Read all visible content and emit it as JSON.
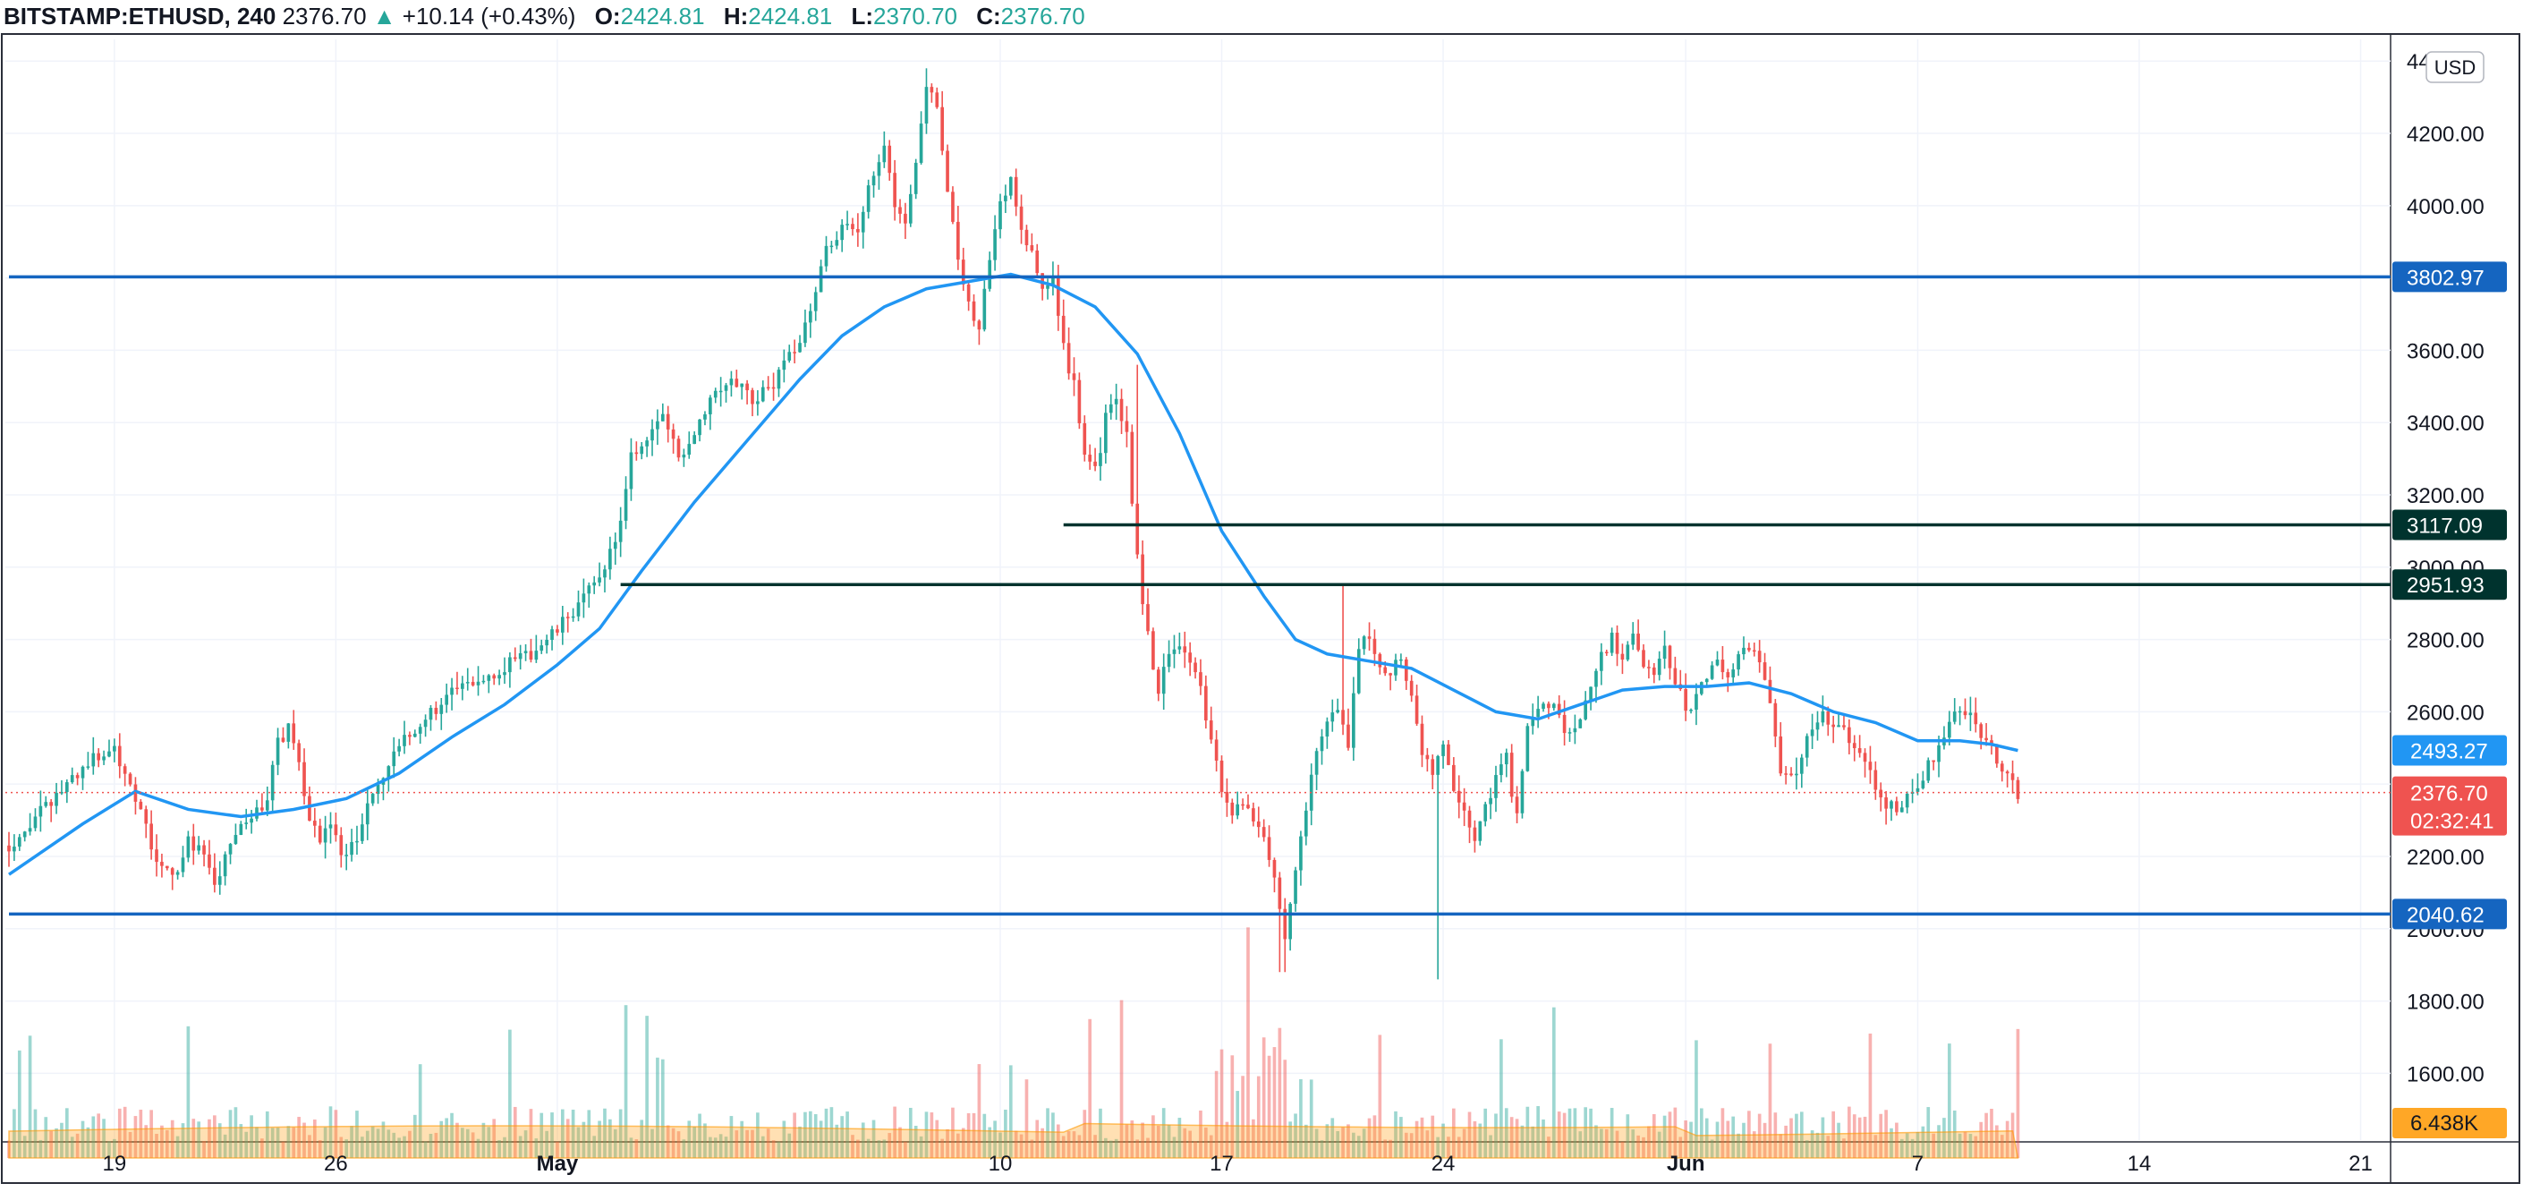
{
  "header": {
    "symbol": "BITSTAMP:ETHUSD, 240",
    "last": "2376.70",
    "arrow": "▲",
    "change": "+10.14 (+0.43%)",
    "open_label": "O:",
    "open": "2424.81",
    "high_label": "H:",
    "high": "2424.81",
    "low_label": "L:",
    "low": "2370.70",
    "close_label": "C:",
    "close": "2376.70"
  },
  "currency_badge": "USD",
  "colors": {
    "up": "#26a69a",
    "down": "#ef5350",
    "ma": "#2196f3",
    "hline_blue": "#1565c0",
    "hline_dark": "#00332e",
    "price_label": "#ef5350",
    "ma_label": "#2196f3",
    "volume_label": "#ffa726"
  },
  "chart_data": {
    "type": "candlestick",
    "timeframe": "240",
    "y_axis": {
      "ylim": [
        1440,
        4460
      ],
      "ticks": [
        "1600.00",
        "1800.00",
        "2000.00",
        "2200.00",
        "2400.00",
        "2600.00",
        "2800.00",
        "3000.00",
        "3200.00",
        "3400.00",
        "3600.00",
        "3800.00",
        "4000.00",
        "4200.00",
        "4400.00"
      ]
    },
    "x_axis": {
      "ticks": [
        {
          "label": "19",
          "bold": false,
          "index": 20
        },
        {
          "label": "26",
          "bold": false,
          "index": 62
        },
        {
          "label": "May",
          "bold": true,
          "index": 104
        },
        {
          "label": "10",
          "bold": false,
          "index": 188
        },
        {
          "label": "17",
          "bold": false,
          "index": 230
        },
        {
          "label": "24",
          "bold": false,
          "index": 272
        },
        {
          "label": "Jun",
          "bold": true,
          "index": 318
        },
        {
          "label": "7",
          "bold": false,
          "index": 362
        },
        {
          "label": "14",
          "bold": false,
          "index": 404
        },
        {
          "label": "21",
          "bold": false,
          "index": 446
        }
      ],
      "total_bars": 452
    },
    "anchors": [
      [
        0,
        2230
      ],
      [
        4,
        2290
      ],
      [
        8,
        2350
      ],
      [
        12,
        2420
      ],
      [
        16,
        2470
      ],
      [
        20,
        2500
      ],
      [
        24,
        2370
      ],
      [
        28,
        2180
      ],
      [
        31,
        2140
      ],
      [
        34,
        2240
      ],
      [
        36,
        2230
      ],
      [
        39,
        2120
      ],
      [
        43,
        2260
      ],
      [
        46,
        2310
      ],
      [
        49,
        2360
      ],
      [
        51,
        2510
      ],
      [
        53,
        2560
      ],
      [
        55,
        2470
      ],
      [
        57,
        2300
      ],
      [
        59,
        2250
      ],
      [
        61,
        2290
      ],
      [
        63,
        2210
      ],
      [
        66,
        2240
      ],
      [
        68,
        2340
      ],
      [
        71,
        2420
      ],
      [
        74,
        2500
      ],
      [
        77,
        2550
      ],
      [
        80,
        2600
      ],
      [
        84,
        2650
      ],
      [
        88,
        2680
      ],
      [
        93,
        2720
      ],
      [
        98,
        2750
      ],
      [
        103,
        2810
      ],
      [
        107,
        2880
      ],
      [
        111,
        2950
      ],
      [
        114,
        3040
      ],
      [
        116,
        3120
      ],
      [
        118,
        3300
      ],
      [
        121,
        3360
      ],
      [
        124,
        3420
      ],
      [
        127,
        3300
      ],
      [
        130,
        3380
      ],
      [
        133,
        3470
      ],
      [
        137,
        3530
      ],
      [
        141,
        3460
      ],
      [
        145,
        3510
      ],
      [
        149,
        3600
      ],
      [
        152,
        3720
      ],
      [
        155,
        3880
      ],
      [
        158,
        3940
      ],
      [
        161,
        3920
      ],
      [
        164,
        4100
      ],
      [
        166,
        4180
      ],
      [
        168,
        4000
      ],
      [
        170,
        3960
      ],
      [
        172,
        4130
      ],
      [
        174,
        4330
      ],
      [
        176,
        4290
      ],
      [
        178,
        4040
      ],
      [
        180,
        3840
      ],
      [
        182,
        3740
      ],
      [
        184,
        3660
      ],
      [
        186,
        3860
      ],
      [
        188,
        4000
      ],
      [
        190,
        4080
      ],
      [
        192,
        3940
      ],
      [
        194,
        3860
      ],
      [
        196,
        3770
      ],
      [
        198,
        3790
      ],
      [
        200,
        3610
      ],
      [
        202,
        3500
      ],
      [
        204,
        3320
      ],
      [
        206,
        3260
      ],
      [
        208,
        3410
      ],
      [
        210,
        3470
      ],
      [
        212,
        3360
      ],
      [
        214,
        3020
      ],
      [
        216,
        2810
      ],
      [
        218,
        2660
      ],
      [
        220,
        2760
      ],
      [
        222,
        2800
      ],
      [
        224,
        2730
      ],
      [
        226,
        2660
      ],
      [
        228,
        2520
      ],
      [
        230,
        2370
      ],
      [
        232,
        2300
      ],
      [
        234,
        2360
      ],
      [
        236,
        2300
      ],
      [
        238,
        2250
      ],
      [
        240,
        2150
      ],
      [
        242,
        1990
      ],
      [
        244,
        2170
      ],
      [
        246,
        2320
      ],
      [
        248,
        2500
      ],
      [
        250,
        2560
      ],
      [
        252,
        2620
      ],
      [
        254,
        2510
      ],
      [
        256,
        2760
      ],
      [
        258,
        2820
      ],
      [
        260,
        2730
      ],
      [
        262,
        2720
      ],
      [
        264,
        2750
      ],
      [
        266,
        2650
      ],
      [
        268,
        2470
      ],
      [
        270,
        2440
      ],
      [
        272,
        2500
      ],
      [
        274,
        2380
      ],
      [
        276,
        2310
      ],
      [
        278,
        2250
      ],
      [
        280,
        2340
      ],
      [
        282,
        2420
      ],
      [
        284,
        2470
      ],
      [
        286,
        2300
      ],
      [
        288,
        2560
      ],
      [
        290,
        2620
      ],
      [
        292,
        2630
      ],
      [
        294,
        2580
      ],
      [
        296,
        2540
      ],
      [
        298,
        2580
      ],
      [
        300,
        2680
      ],
      [
        302,
        2750
      ],
      [
        304,
        2800
      ],
      [
        306,
        2740
      ],
      [
        308,
        2820
      ],
      [
        310,
        2720
      ],
      [
        312,
        2690
      ],
      [
        314,
        2780
      ],
      [
        316,
        2680
      ],
      [
        318,
        2610
      ],
      [
        320,
        2640
      ],
      [
        322,
        2690
      ],
      [
        324,
        2740
      ],
      [
        326,
        2700
      ],
      [
        328,
        2760
      ],
      [
        330,
        2790
      ],
      [
        332,
        2740
      ],
      [
        334,
        2620
      ],
      [
        336,
        2420
      ],
      [
        338,
        2410
      ],
      [
        340,
        2480
      ],
      [
        342,
        2560
      ],
      [
        344,
        2600
      ],
      [
        346,
        2560
      ],
      [
        348,
        2540
      ],
      [
        350,
        2500
      ],
      [
        352,
        2450
      ],
      [
        354,
        2390
      ],
      [
        356,
        2350
      ],
      [
        358,
        2320
      ],
      [
        360,
        2360
      ],
      [
        362,
        2380
      ],
      [
        364,
        2450
      ],
      [
        366,
        2510
      ],
      [
        368,
        2580
      ],
      [
        370,
        2620
      ],
      [
        372,
        2580
      ],
      [
        374,
        2540
      ],
      [
        376,
        2510
      ],
      [
        378,
        2440
      ],
      [
        380,
        2410
      ],
      [
        381,
        2377
      ]
    ],
    "moving_average": {
      "label": "2493.27",
      "points": [
        [
          0,
          2150
        ],
        [
          14,
          2290
        ],
        [
          24,
          2380
        ],
        [
          34,
          2330
        ],
        [
          44,
          2310
        ],
        [
          54,
          2330
        ],
        [
          64,
          2360
        ],
        [
          74,
          2430
        ],
        [
          84,
          2530
        ],
        [
          94,
          2620
        ],
        [
          104,
          2730
        ],
        [
          112,
          2830
        ],
        [
          120,
          2990
        ],
        [
          130,
          3180
        ],
        [
          140,
          3350
        ],
        [
          150,
          3520
        ],
        [
          158,
          3640
        ],
        [
          166,
          3720
        ],
        [
          174,
          3770
        ],
        [
          182,
          3790
        ],
        [
          190,
          3810
        ],
        [
          198,
          3780
        ],
        [
          206,
          3720
        ],
        [
          214,
          3590
        ],
        [
          222,
          3370
        ],
        [
          230,
          3100
        ],
        [
          238,
          2920
        ],
        [
          244,
          2800
        ],
        [
          250,
          2760
        ],
        [
          258,
          2740
        ],
        [
          266,
          2720
        ],
        [
          274,
          2660
        ],
        [
          282,
          2600
        ],
        [
          290,
          2580
        ],
        [
          298,
          2620
        ],
        [
          306,
          2660
        ],
        [
          314,
          2670
        ],
        [
          322,
          2670
        ],
        [
          330,
          2680
        ],
        [
          338,
          2650
        ],
        [
          346,
          2600
        ],
        [
          354,
          2570
        ],
        [
          362,
          2520
        ],
        [
          370,
          2520
        ],
        [
          376,
          2510
        ],
        [
          381,
          2493
        ]
      ]
    },
    "horizontal_lines": [
      {
        "price": 3802.97,
        "label": "3802.97",
        "style": "blue",
        "start_index": 0
      },
      {
        "price": 3117.09,
        "label": "3117.09",
        "style": "dark",
        "start_index": 200
      },
      {
        "price": 2951.93,
        "label": "2951.93",
        "style": "dark",
        "start_index": 116
      },
      {
        "price": 2040.62,
        "label": "2040.62",
        "style": "blue",
        "start_index": 0
      }
    ],
    "last_price": {
      "price": 2376.7,
      "label": "2376.70",
      "countdown": "02:32:41"
    },
    "volume": {
      "label": "6.438K"
    }
  }
}
